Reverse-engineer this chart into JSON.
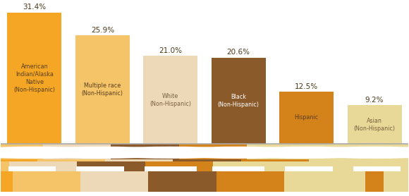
{
  "categories": [
    "American\nIndian/Alaska\nNative\n(Non-Hispanic)",
    "Multiple race\n(Non-Hispanic)",
    "White\n(Non-Hispanic)",
    "Black\n(Non-Hispanic)",
    "Hispanic",
    "Asian\n(Non-Hispanic)"
  ],
  "values": [
    31.4,
    25.9,
    21.0,
    20.6,
    12.5,
    9.2
  ],
  "labels": [
    "31.4%",
    "25.9%",
    "21.0%",
    "20.6%",
    "12.5%",
    "9.2%"
  ],
  "bar_colors": [
    "#F5A624",
    "#F5C469",
    "#EDD9B8",
    "#8B5A2B",
    "#D4821A",
    "#E8D998"
  ],
  "figure_colors": [
    "#F5A624",
    "#F5C469",
    "#EDD9B8",
    "#8B5A2B",
    "#D4821A",
    "#E8D998"
  ],
  "text_colors": [
    "#5a4020",
    "#5a4020",
    "#7a6040",
    "#ffffff",
    "#5a4020",
    "#7a6040"
  ],
  "background_color": "#ffffff",
  "baseline_color": "#aaaaaa",
  "pct_color": "#4a3818"
}
